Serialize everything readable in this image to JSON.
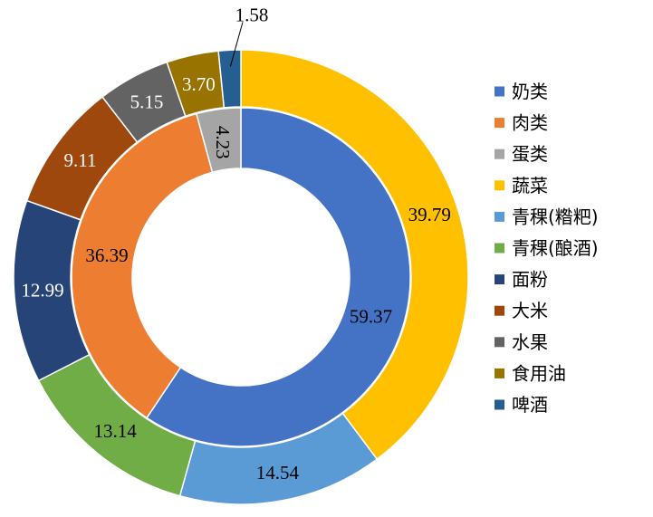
{
  "chart_data": {
    "type": "doughnut",
    "title": "",
    "legend": {
      "position": "right",
      "items": [
        {
          "label": "奶类",
          "color": "#4472C4"
        },
        {
          "label": "肉类",
          "color": "#ED7D31"
        },
        {
          "label": "蛋类",
          "color": "#A5A5A5"
        },
        {
          "label": "蔬菜",
          "color": "#FFC000"
        },
        {
          "label": "青稞(糌粑)",
          "color": "#5B9BD5"
        },
        {
          "label": "青稞(酿酒)",
          "color": "#70AD47"
        },
        {
          "label": "面粉",
          "color": "#264478"
        },
        {
          "label": "大米",
          "color": "#9E480E"
        },
        {
          "label": "水果",
          "color": "#636363"
        },
        {
          "label": "食用油",
          "color": "#997300"
        },
        {
          "label": "啤酒",
          "color": "#255E91"
        }
      ]
    },
    "inner_ring": {
      "slices": [
        {
          "label": "奶类",
          "value": 59.37,
          "display": "59.37",
          "color": "#4472C4"
        },
        {
          "label": "肉类",
          "value": 36.39,
          "display": "36.39",
          "color": "#ED7D31"
        },
        {
          "label": "蛋类",
          "value": 4.23,
          "display": "4.23",
          "color": "#A5A5A5"
        }
      ]
    },
    "outer_ring": {
      "slices": [
        {
          "label": "蔬菜",
          "value": 39.79,
          "display": "39.79",
          "color": "#FFC000"
        },
        {
          "label": "青稞(糌粑)",
          "value": 14.54,
          "display": "14.54",
          "color": "#5B9BD5"
        },
        {
          "label": "青稞(酿酒)",
          "value": 13.14,
          "display": "13.14",
          "color": "#70AD47"
        },
        {
          "label": "面粉",
          "value": 12.99,
          "display": "12.99",
          "color": "#264478"
        },
        {
          "label": "大米",
          "value": 9.11,
          "display": "9.11",
          "color": "#9E480E"
        },
        {
          "label": "水果",
          "value": 5.15,
          "display": "5.15",
          "color": "#636363"
        },
        {
          "label": "食用油",
          "value": 3.7,
          "display": "3.70",
          "color": "#997300"
        },
        {
          "label": "啤酒",
          "value": 1.58,
          "display": "1.58",
          "color": "#255E91"
        }
      ]
    }
  }
}
